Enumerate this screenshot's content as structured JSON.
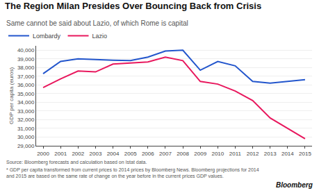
{
  "chart_data": {
    "type": "line",
    "title": "The Region Milan Presides Over Bouncing Back from Crisis",
    "subtitle": "Same cannot be said about Lazio, of which Rome is capital",
    "y_label": "GDP per capita (euros)",
    "annotations": [
      "Source: Bloomberg forecasts and calculation based on Istat data.",
      "* GDP per capita transformed from current prices to 2014 prices by Bloomberg News. Bloomberg projections for 2014\nand 2015 are based on the same rate of change on the year before in the current prices GDP values.",
      "Bloomberg"
    ],
    "x": [
      2000,
      2001,
      2002,
      2003,
      2004,
      2005,
      2006,
      2007,
      2008,
      2009,
      2010,
      2011,
      2012,
      2013,
      2014,
      2015
    ],
    "series": [
      {
        "name": "Lombardy",
        "color": "#2255cc",
        "values": [
          37300,
          38700,
          39000,
          38900,
          38850,
          38800,
          39200,
          39900,
          40000,
          37700,
          38700,
          38200,
          36400,
          36200,
          36400,
          36600
        ]
      },
      {
        "name": "Lazio",
        "color": "#e8175d",
        "values": [
          35700,
          36700,
          37600,
          37500,
          38400,
          38500,
          38650,
          39200,
          38800,
          36400,
          36100,
          35300,
          34200,
          32200,
          31000,
          29800
        ]
      }
    ],
    "xlim": [
      1999.6,
      2015.4
    ],
    "xticks": [
      2000,
      2001,
      2002,
      2003,
      2004,
      2005,
      2006,
      2007,
      2008,
      2009,
      2010,
      2011,
      2012,
      2013,
      2014,
      2015
    ],
    "ylim": [
      29000,
      40500
    ],
    "yticks": [
      {
        "value": 29000,
        "label": "29,000"
      },
      {
        "value": 30000,
        "label": "30,000"
      },
      {
        "value": 31000,
        "label": "31,000"
      },
      {
        "value": 32000,
        "label": "32,000"
      },
      {
        "value": 33000,
        "label": "33,000"
      },
      {
        "value": 34000,
        "label": "34,000"
      },
      {
        "value": 35000,
        "label": "35,000"
      },
      {
        "value": 36000,
        "label": "36,000"
      },
      {
        "value": 37000,
        "label": "37,000"
      },
      {
        "value": 38000,
        "label": "38,000"
      },
      {
        "value": 39000,
        "label": "39,000"
      },
      {
        "value": 40000,
        "label": "40,000"
      }
    ],
    "grid": true,
    "legend": "top left"
  }
}
